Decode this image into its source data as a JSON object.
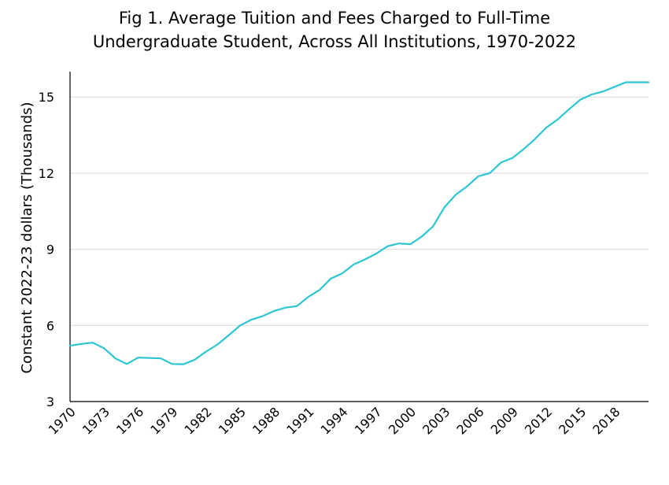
{
  "chart_data": {
    "type": "line",
    "title_lines": [
      "Fig 1. Average Tuition and Fees Charged to Full-Time",
      "Undergraduate Student, Across All Institutions, 1970-2022"
    ],
    "xlabel": "",
    "ylabel": "Constant 2022-23 dollars (Thousands)",
    "ylim": [
      3,
      16
    ],
    "xlim": [
      1970,
      2021
    ],
    "y_ticks": [
      3,
      6,
      9,
      12,
      15
    ],
    "x_ticks": [
      1970,
      1973,
      1976,
      1979,
      1982,
      1985,
      1988,
      1991,
      1994,
      1997,
      2000,
      2003,
      2006,
      2009,
      2012,
      2015,
      2018
    ],
    "grid": "horizontal",
    "legend": "none",
    "series": [
      {
        "color": "#2cc6d3",
        "x": [
          1970,
          1971,
          1972,
          1973,
          1974,
          1975,
          1976,
          1977,
          1978,
          1979,
          1980,
          1981,
          1982,
          1983,
          1984,
          1985,
          1986,
          1987,
          1988,
          1989,
          1990,
          1991,
          1992,
          1993,
          1994,
          1995,
          1996,
          1997,
          1998,
          1999,
          2000,
          2001,
          2002,
          2003,
          2004,
          2005,
          2006,
          2007,
          2008,
          2009,
          2010,
          2011,
          2012,
          2013,
          2014,
          2015,
          2016,
          2017,
          2018,
          2019,
          2020,
          2021
        ],
        "y": [
          5.2,
          5.27,
          5.32,
          5.1,
          4.7,
          4.48,
          4.73,
          4.72,
          4.7,
          4.48,
          4.47,
          4.65,
          4.97,
          5.25,
          5.62,
          6.0,
          6.23,
          6.37,
          6.57,
          6.7,
          6.76,
          7.12,
          7.4,
          7.85,
          8.05,
          8.4,
          8.6,
          8.83,
          9.12,
          9.23,
          9.2,
          9.5,
          9.9,
          10.65,
          11.15,
          11.48,
          11.88,
          12.0,
          12.42,
          12.6,
          12.95,
          13.35,
          13.8,
          14.12,
          14.52,
          14.9,
          15.1,
          15.22,
          15.4,
          15.58,
          15.58,
          15.58
        ]
      }
    ]
  }
}
